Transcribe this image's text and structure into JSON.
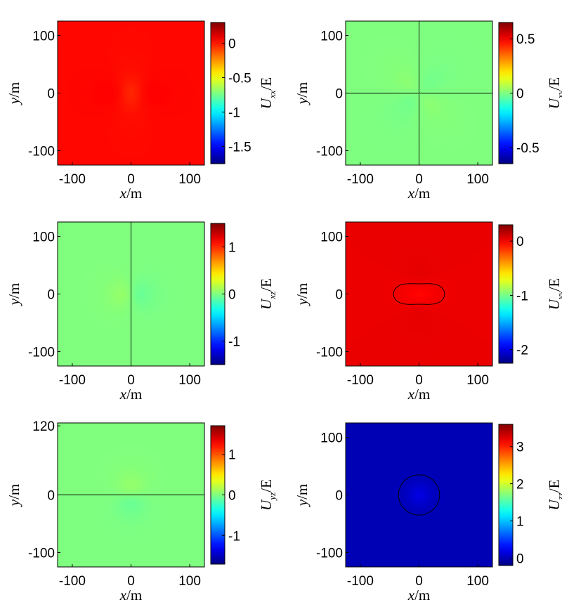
{
  "chart_data": [
    {
      "type": "heatmap",
      "component": "xx",
      "xlabel_var": "x",
      "xlabel_unit": "/m",
      "ylabel_var": "y",
      "ylabel_unit": "/m",
      "xlim": [
        -125,
        125
      ],
      "ylim": [
        -125,
        125
      ],
      "xticks": [
        -100,
        0,
        100
      ],
      "yticks": [
        100,
        0,
        -100
      ],
      "colorbar": {
        "label_main": "U",
        "label_sub": "xx",
        "label_unit": "/E",
        "range": [
          -1.75,
          0.3
        ],
        "ticks": [
          0,
          -0.5,
          -1,
          -1.5
        ]
      },
      "colormap": "jet",
      "contour_lines": true,
      "grid": false
    },
    {
      "type": "heatmap",
      "component": "xy",
      "xlabel_var": "x",
      "xlabel_unit": "/m",
      "ylabel_var": "y",
      "ylabel_unit": "/m",
      "xlim": [
        -125,
        125
      ],
      "ylim": [
        -125,
        125
      ],
      "xticks": [
        -100,
        0,
        100
      ],
      "yticks": [
        100,
        0,
        -100
      ],
      "colorbar": {
        "label_main": "U",
        "label_sub": "xy",
        "label_unit": "/E",
        "range": [
          -0.65,
          0.65
        ],
        "ticks": [
          0.5,
          0,
          -0.5
        ]
      },
      "colormap": "jet",
      "contour_lines": true,
      "grid": false
    },
    {
      "type": "heatmap",
      "component": "xz",
      "xlabel_var": "x",
      "xlabel_unit": "/m",
      "ylabel_var": "y",
      "ylabel_unit": "/m",
      "xlim": [
        -125,
        125
      ],
      "ylim": [
        -125,
        125
      ],
      "xticks": [
        -100,
        0,
        100
      ],
      "yticks": [
        100,
        0,
        -100
      ],
      "colorbar": {
        "label_main": "U",
        "label_sub": "xz",
        "label_unit": "/E",
        "range": [
          -1.5,
          1.5
        ],
        "ticks": [
          1,
          0,
          -1
        ]
      },
      "colormap": "jet",
      "contour_lines": true,
      "grid": false
    },
    {
      "type": "heatmap",
      "component": "yy",
      "xlabel_var": "x",
      "xlabel_unit": "/m",
      "ylabel_var": "y",
      "ylabel_unit": "/m",
      "xlim": [
        -125,
        125
      ],
      "ylim": [
        -125,
        125
      ],
      "xticks": [
        -100,
        0,
        100
      ],
      "yticks": [
        100,
        0,
        -100
      ],
      "colorbar": {
        "label_main": "U",
        "label_sub": "yy",
        "label_unit": "/E",
        "range": [
          -2.25,
          0.3
        ],
        "ticks": [
          0,
          -1,
          -2
        ]
      },
      "colormap": "jet",
      "contour_lines": true,
      "grid": false
    },
    {
      "type": "heatmap",
      "component": "yz",
      "xlabel_var": "x",
      "xlabel_unit": "/m",
      "ylabel_var": "y",
      "ylabel_unit": "/m",
      "xlim": [
        -125,
        125
      ],
      "ylim": [
        -125,
        125
      ],
      "xticks": [
        -100,
        0,
        100
      ],
      "yticks": [
        120,
        0,
        -100
      ],
      "colorbar": {
        "label_main": "U",
        "label_sub": "yz",
        "label_unit": "/E",
        "range": [
          -1.7,
          1.7
        ],
        "ticks": [
          1,
          0,
          -1
        ]
      },
      "colormap": "jet",
      "contour_lines": true,
      "grid": false
    },
    {
      "type": "heatmap",
      "component": "zz",
      "xlabel_var": "x",
      "xlabel_unit": "/m",
      "ylabel_var": "y",
      "ylabel_unit": "/m",
      "xlim": [
        -125,
        125
      ],
      "ylim": [
        -125,
        125
      ],
      "xticks": [
        -100,
        0,
        100
      ],
      "yticks": [
        100,
        0,
        -100
      ],
      "colorbar": {
        "label_main": "U",
        "label_sub": "zz",
        "label_unit": "/E",
        "range": [
          -0.2,
          3.6
        ],
        "ticks": [
          3,
          2,
          1,
          0
        ]
      },
      "colormap": "jet",
      "contour_lines": true,
      "grid": false
    }
  ]
}
